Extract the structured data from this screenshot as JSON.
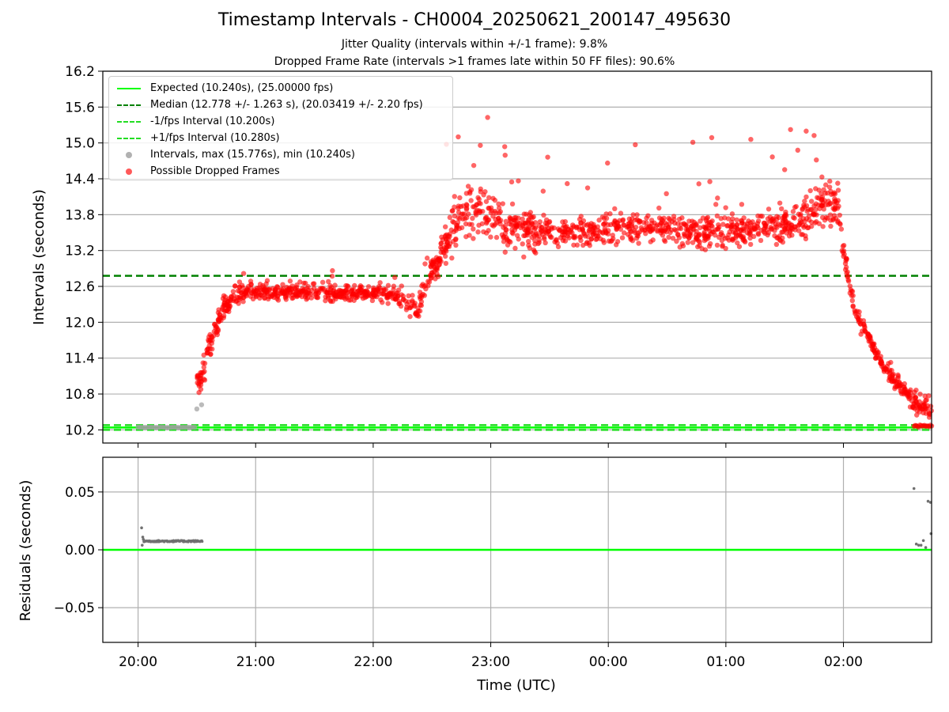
{
  "title": "Timestamp Intervals - CH0004_20250621_200147_495630",
  "subtitle_1": "Jitter Quality (intervals within +/-1 frame): 9.8%",
  "subtitle_2": "Dropped Frame Rate (intervals >1 frames late within 50 FF files): 90.6%",
  "colors": {
    "expected": "#00ff00",
    "median": "#008000",
    "bounds": "#22dd22",
    "intervals": "#9e9e9e",
    "dropped": "#ff0000",
    "residuals": "#707070"
  },
  "legend": [
    {
      "label": "Expected (10.240s), (25.00000 fps)",
      "style": "solid",
      "color": "#00ff00"
    },
    {
      "label": "Median (12.778 +/- 1.263 s), (20.03419 +/- 2.20 fps)",
      "style": "dashed",
      "color": "#008000"
    },
    {
      "label": "-1/fps Interval (10.200s)",
      "style": "dashed",
      "color": "#22dd22"
    },
    {
      "label": "+1/fps Interval (10.280s)",
      "style": "dashed",
      "color": "#22dd22"
    },
    {
      "label": "Intervals, max (15.776s), min (10.240s)",
      "style": "dot",
      "color": "#9e9e9e"
    },
    {
      "label": "Possible Dropped Frames",
      "style": "dot",
      "color": "#ff0000"
    }
  ],
  "chart_data": [
    {
      "type": "scatter",
      "title": "",
      "xlabel": "",
      "ylabel": "Intervals (seconds)",
      "x_unit": "hours after 20:00 UTC",
      "xlim": [
        -0.3,
        6.75
      ],
      "ylim": [
        9.98,
        16.2
      ],
      "yticks": [
        10.2,
        10.8,
        11.4,
        12.0,
        12.6,
        13.2,
        13.8,
        14.4,
        15.0,
        15.6,
        16.2
      ],
      "xticks": [
        0,
        1,
        2,
        3,
        4,
        5,
        6
      ],
      "x_ticklabels": [
        "20:00",
        "21:00",
        "22:00",
        "23:00",
        "00:00",
        "01:00",
        "02:00"
      ],
      "grid": true,
      "legend_position": "top-left",
      "reference_lines": [
        {
          "name": "Expected (10.240s), (25.00000 fps)",
          "y": 10.24
        },
        {
          "name": "Median (12.778 +/- 1.263 s), (20.03419 +/- 2.20 fps)",
          "y": 12.778
        },
        {
          "name": "-1/fps Interval (10.200s)",
          "y": 10.2
        },
        {
          "name": "+1/fps Interval (10.280s)",
          "y": 10.28
        }
      ],
      "series": [
        {
          "name": "Intervals, max (15.776s), min (10.240s)",
          "kind": "all-intervals",
          "y_max": 15.776,
          "y_min": 10.24
        },
        {
          "name": "Possible Dropped Frames",
          "trend_x": [
            0.5,
            0.55,
            0.6,
            0.65,
            0.7,
            0.75,
            0.8,
            0.85,
            0.9,
            1.0,
            1.2,
            1.5,
            1.8,
            2.0,
            2.2,
            2.3,
            2.38,
            2.42,
            2.5,
            2.6,
            2.7,
            2.8,
            2.9,
            3.0,
            3.2,
            3.4,
            3.6,
            4.0,
            4.4,
            4.8,
            5.2,
            5.5,
            5.7,
            5.85,
            5.95,
            6.0,
            6.05,
            6.1,
            6.2,
            6.3,
            6.4,
            6.5,
            6.6,
            6.75
          ],
          "trend_y": [
            10.9,
            11.2,
            11.55,
            11.85,
            12.1,
            12.3,
            12.42,
            12.48,
            12.5,
            12.5,
            12.5,
            12.5,
            12.5,
            12.5,
            12.45,
            12.3,
            12.2,
            12.5,
            12.85,
            13.25,
            13.6,
            13.9,
            13.95,
            13.75,
            13.6,
            13.5,
            13.5,
            13.55,
            13.6,
            13.5,
            13.55,
            13.65,
            13.75,
            14.0,
            14.0,
            13.2,
            12.6,
            12.2,
            11.8,
            11.4,
            11.1,
            10.9,
            10.65,
            10.5
          ],
          "spread_y": [
            0.18,
            0.2,
            0.2,
            0.2,
            0.18,
            0.15,
            0.13,
            0.12,
            0.12,
            0.12,
            0.12,
            0.12,
            0.12,
            0.12,
            0.13,
            0.16,
            0.2,
            0.18,
            0.2,
            0.25,
            0.35,
            0.4,
            0.45,
            0.4,
            0.35,
            0.25,
            0.22,
            0.22,
            0.22,
            0.22,
            0.22,
            0.25,
            0.3,
            0.35,
            0.35,
            0.2,
            0.12,
            0.12,
            0.12,
            0.12,
            0.12,
            0.12,
            0.14,
            0.16
          ]
        }
      ]
    },
    {
      "type": "scatter",
      "title": "",
      "xlabel": "Time (UTC)",
      "ylabel": "Residuals (seconds)",
      "xlim": [
        -0.3,
        6.75
      ],
      "ylim": [
        -0.08,
        0.08
      ],
      "yticks": [
        -0.05,
        0.0,
        0.05
      ],
      "y_ticklabels": [
        "−0.05",
        "0.00",
        "0.05"
      ],
      "xticks": [
        0,
        1,
        2,
        3,
        4,
        5,
        6
      ],
      "x_ticklabels": [
        "20:00",
        "21:00",
        "22:00",
        "23:00",
        "00:00",
        "01:00",
        "02:00"
      ],
      "grid": true,
      "reference_lines": [
        {
          "y": 0.0
        }
      ],
      "series": [
        {
          "kind": "residual-points",
          "x": [
            0.03,
            0.035,
            0.04,
            0.045,
            0.05,
            0.06,
            0.07,
            6.6,
            6.62,
            6.64,
            6.66,
            6.68,
            6.7,
            6.72,
            6.74,
            6.745
          ],
          "y": [
            0.019,
            0.004,
            0.011,
            0.009,
            0.007,
            0.0075,
            0.0075,
            0.053,
            0.005,
            0.004,
            0.004,
            0.008,
            0.002,
            0.042,
            0.041,
            0.014
          ],
          "band_x": [
            0.05,
            0.55
          ],
          "band_y": 0.0075
        }
      ]
    }
  ]
}
